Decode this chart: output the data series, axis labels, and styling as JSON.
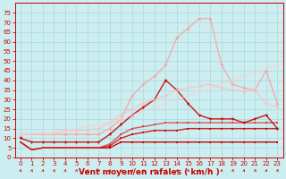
{
  "xlabel": "Vent moyen/en rafales ( km/h )",
  "background_color": "#cceef0",
  "grid_color": "#aad8dc",
  "x_ticks": [
    0,
    1,
    2,
    3,
    4,
    5,
    6,
    7,
    8,
    9,
    10,
    11,
    12,
    13,
    14,
    15,
    16,
    17,
    18,
    19,
    20,
    21,
    22,
    23
  ],
  "ylim": [
    0,
    80
  ],
  "yticks": [
    0,
    5,
    10,
    15,
    20,
    25,
    30,
    35,
    40,
    45,
    50,
    55,
    60,
    65,
    70,
    75
  ],
  "series": [
    {
      "y": [
        8,
        4,
        5,
        5,
        5,
        5,
        5,
        5,
        5,
        8,
        8,
        8,
        8,
        8,
        8,
        8,
        8,
        8,
        8,
        8,
        8,
        8,
        8,
        8
      ],
      "color": "#cc0000",
      "alpha": 1.0,
      "lw": 1.0,
      "marker": "s",
      "ms": 2.0
    },
    {
      "y": [
        8,
        4,
        5,
        5,
        5,
        5,
        5,
        5,
        6,
        10,
        12,
        13,
        14,
        14,
        14,
        15,
        15,
        15,
        15,
        15,
        15,
        15,
        15,
        15
      ],
      "color": "#cc0000",
      "alpha": 0.85,
      "lw": 1.0,
      "marker": "s",
      "ms": 2.0
    },
    {
      "y": [
        8,
        4,
        5,
        5,
        5,
        5,
        5,
        5,
        7,
        12,
        15,
        16,
        17,
        18,
        18,
        18,
        18,
        18,
        18,
        18,
        18,
        18,
        18,
        18
      ],
      "color": "#dd3333",
      "alpha": 0.8,
      "lw": 1.0,
      "marker": "s",
      "ms": 2.0
    },
    {
      "y": [
        10,
        8,
        8,
        8,
        8,
        8,
        8,
        8,
        12,
        17,
        22,
        26,
        30,
        40,
        35,
        28,
        22,
        20,
        20,
        20,
        18,
        20,
        22,
        15
      ],
      "color": "#cc0000",
      "alpha": 0.9,
      "lw": 1.0,
      "marker": "v",
      "ms": 2.5
    },
    {
      "y": [
        12,
        12,
        12,
        12,
        12,
        12,
        12,
        12,
        15,
        20,
        32,
        38,
        42,
        48,
        62,
        67,
        72,
        72,
        48,
        38,
        36,
        35,
        45,
        28
      ],
      "color": "#ff9999",
      "alpha": 0.7,
      "lw": 1.1,
      "marker": "D",
      "ms": 2.0
    },
    {
      "y": [
        12,
        12,
        12,
        12,
        14,
        14,
        14,
        15,
        18,
        22,
        25,
        28,
        30,
        32,
        35,
        36,
        37,
        38,
        36,
        35,
        34,
        35,
        28,
        26
      ],
      "color": "#ffbbbb",
      "alpha": 0.65,
      "lw": 1.1,
      "marker": "D",
      "ms": 2.0
    },
    {
      "y": [
        12,
        12,
        13,
        13,
        14,
        15,
        16,
        17,
        18,
        20,
        22,
        24,
        26,
        28,
        30,
        32,
        34,
        36,
        38,
        40,
        42,
        44,
        46,
        48
      ],
      "color": "#ffcccc",
      "alpha": 0.6,
      "lw": 1.1,
      "marker": "o",
      "ms": 2.0
    }
  ],
  "arrow_color": "#cc0000",
  "tick_color": "#cc0000",
  "tick_fontsize": 5.0,
  "xlabel_fontsize": 6.5,
  "xlabel_color": "#cc0000",
  "xlabel_fontweight": "bold"
}
